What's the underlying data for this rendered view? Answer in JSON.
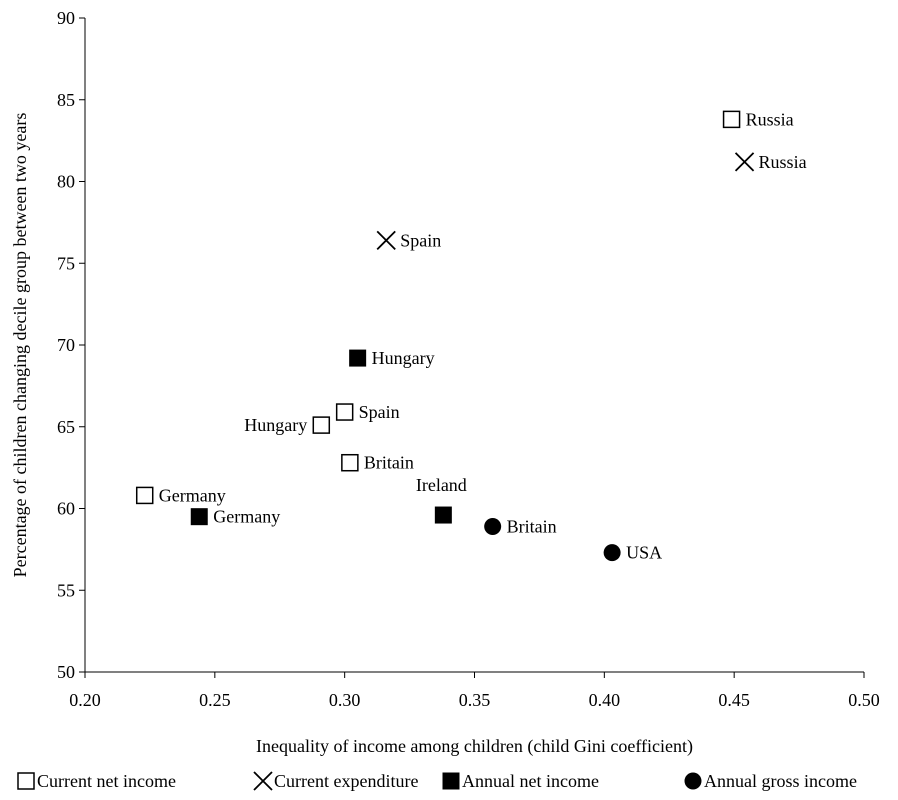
{
  "chart_data": {
    "type": "scatter",
    "title": "",
    "xlabel": "Inequality of income among children (child Gini coefficient)",
    "ylabel": "Percentage of children changing decile group between two years",
    "xlim": [
      0.2,
      0.5
    ],
    "ylim": [
      50,
      90
    ],
    "x_ticks": [
      "0.20",
      "0.25",
      "0.30",
      "0.35",
      "0.40",
      "0.45",
      "0.50"
    ],
    "y_ticks": [
      "50",
      "55",
      "60",
      "65",
      "70",
      "75",
      "80",
      "85",
      "90"
    ],
    "grid": false,
    "legend_position": "bottom",
    "series": [
      {
        "name": "Current net income",
        "marker": "open-square",
        "points": [
          {
            "label": "Germany",
            "x": 0.223,
            "y": 60.8
          },
          {
            "label": "Hungary",
            "x": 0.291,
            "y": 65.1
          },
          {
            "label": "Spain",
            "x": 0.3,
            "y": 65.9
          },
          {
            "label": "Britain",
            "x": 0.302,
            "y": 62.8
          },
          {
            "label": "Russia",
            "x": 0.449,
            "y": 83.8
          }
        ]
      },
      {
        "name": "Current expenditure",
        "marker": "cross",
        "points": [
          {
            "label": "Spain",
            "x": 0.316,
            "y": 76.4
          },
          {
            "label": "Russia",
            "x": 0.454,
            "y": 81.2
          }
        ]
      },
      {
        "name": "Annual net income",
        "marker": "filled-square",
        "points": [
          {
            "label": "Germany",
            "x": 0.244,
            "y": 59.5
          },
          {
            "label": "Hungary",
            "x": 0.305,
            "y": 69.2
          },
          {
            "label": "Ireland",
            "x": 0.338,
            "y": 59.6
          }
        ]
      },
      {
        "name": "Annual gross income",
        "marker": "filled-circle",
        "points": [
          {
            "label": "Britain",
            "x": 0.357,
            "y": 58.9
          },
          {
            "label": "USA",
            "x": 0.403,
            "y": 57.3
          }
        ]
      }
    ]
  }
}
